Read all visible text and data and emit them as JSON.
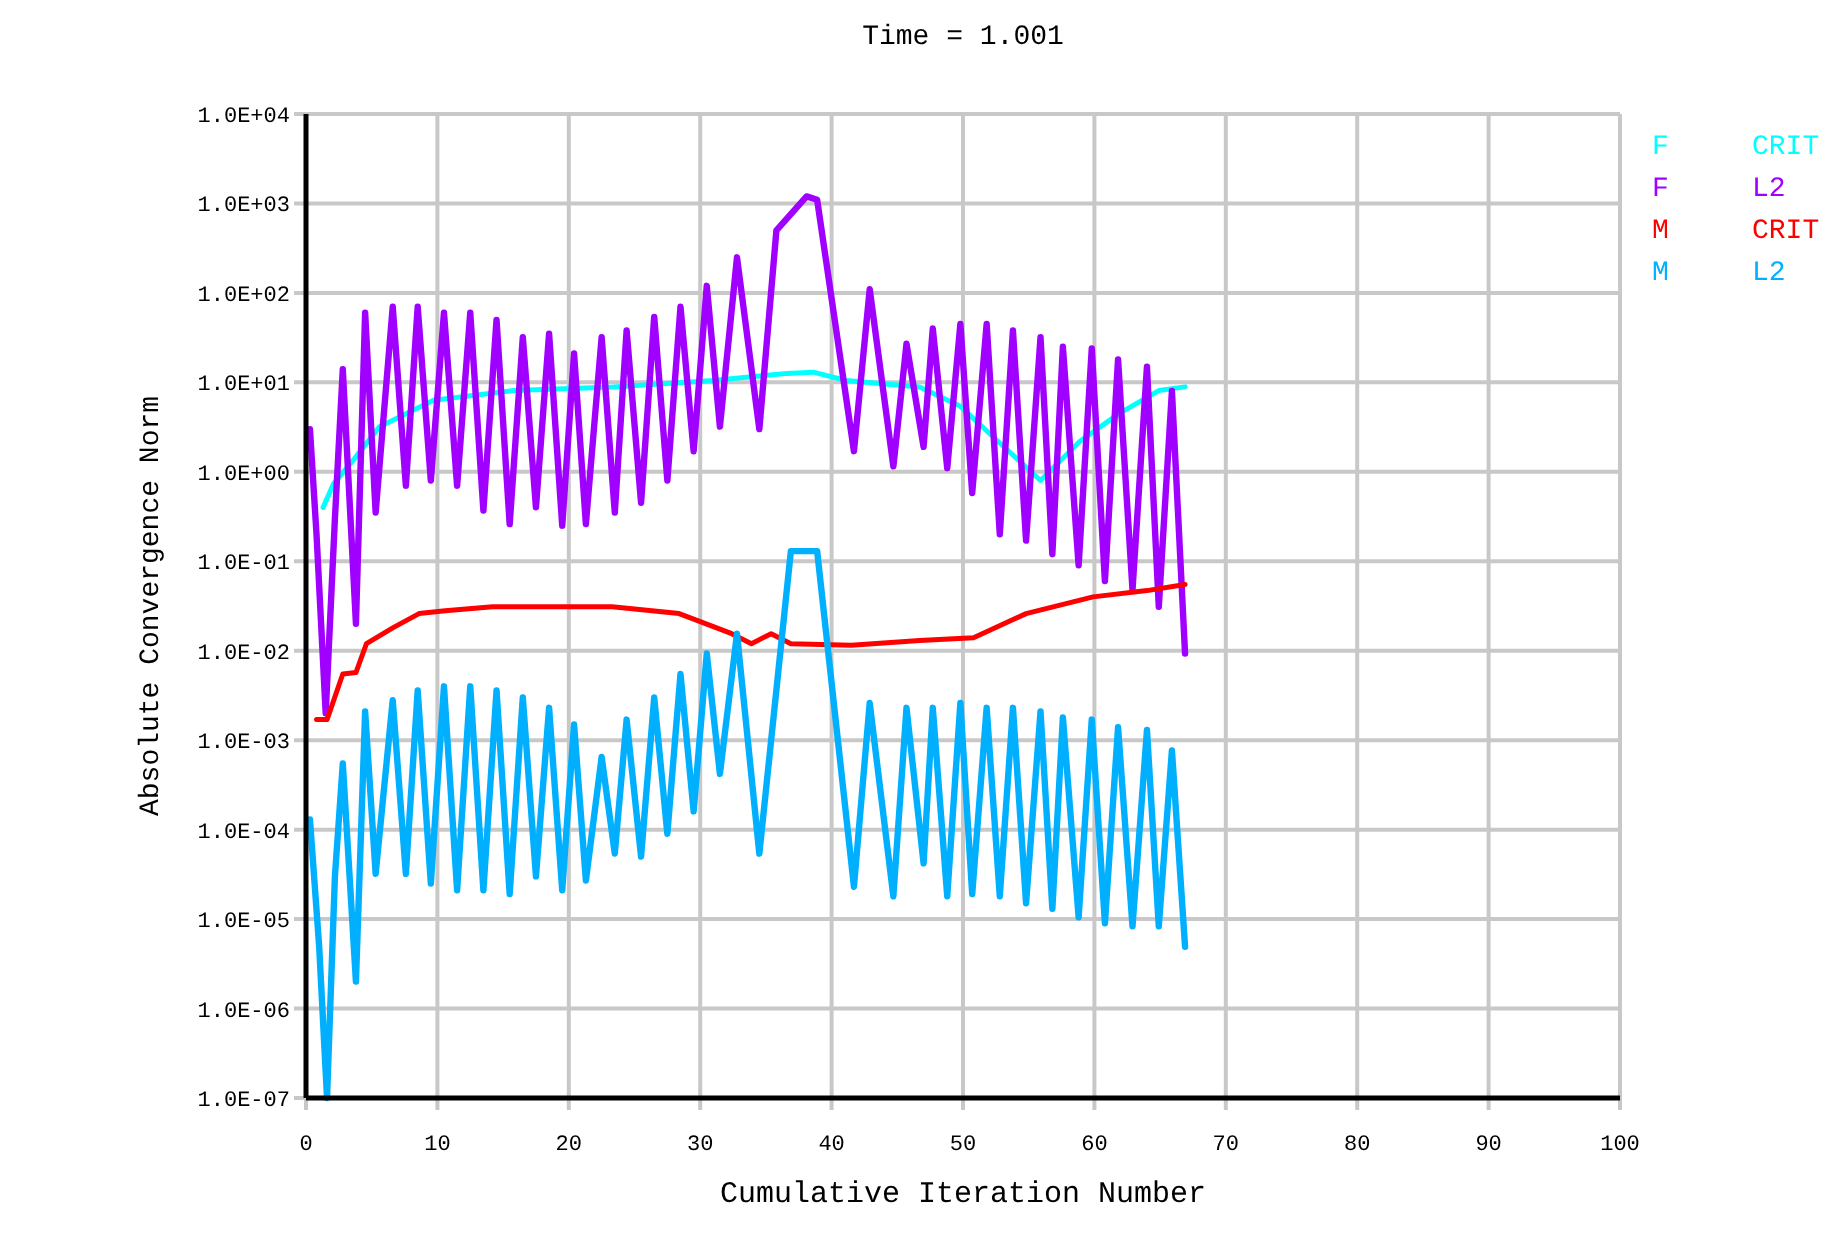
{
  "chart_data": {
    "type": "line",
    "title": "Time = 1.001",
    "xlabel": "Cumulative Iteration Number",
    "ylabel": "Absolute Convergence Norm",
    "log": "y",
    "grid": true,
    "xlim": [
      0,
      100
    ],
    "xticks": [
      0,
      10,
      20,
      30,
      40,
      50,
      60,
      70,
      80,
      90,
      100
    ],
    "ylim": [
      1e-07,
      10000
    ],
    "yticks": [
      {
        "value": 1e-07,
        "label": "1.0E-07"
      },
      {
        "value": 1e-06,
        "label": "1.0E-06"
      },
      {
        "value": 1e-05,
        "label": "1.0E-05"
      },
      {
        "value": 0.0001,
        "label": "1.0E-04"
      },
      {
        "value": 0.001,
        "label": "1.0E-03"
      },
      {
        "value": 0.01,
        "label": "1.0E-02"
      },
      {
        "value": 0.1,
        "label": "1.0E-01"
      },
      {
        "value": 1,
        "label": "1.0E+00"
      },
      {
        "value": 10,
        "label": "1.0E+01"
      },
      {
        "value": 100,
        "label": "1.0E+02"
      },
      {
        "value": 1000,
        "label": "1.0E+03"
      },
      {
        "value": 10000,
        "label": "1.0E+04"
      }
    ],
    "series": [
      {
        "name": "F CRIT",
        "color": "#00ffff",
        "x": [
          1.3,
          2.1,
          3.6,
          5.6,
          9.7,
          15.8,
          23.4,
          31,
          36.6,
          38.6,
          41.1,
          46.7,
          49.8,
          52.8,
          55.9,
          58.9,
          61.9,
          64.9,
          66.9
        ],
        "values": [
          0.4,
          0.74,
          1.35,
          3.2,
          6.3,
          8.1,
          8.9,
          10.5,
          12.6,
          13,
          10.5,
          8.9,
          5.4,
          2.1,
          0.8,
          2.2,
          4.5,
          8.1,
          8.9
        ]
      },
      {
        "name": "F L2",
        "color": "#a000ff",
        "x": [
          0.3,
          0.8,
          1.5,
          2.2,
          2.8,
          3.8,
          4.5,
          5.3,
          6.6,
          7.6,
          8.5,
          9.5,
          10.5,
          11.5,
          12.5,
          13.5,
          14.5,
          15.5,
          16.5,
          17.5,
          18.5,
          19.5,
          20.4,
          21.3,
          22.5,
          23.5,
          24.4,
          25.5,
          26.5,
          27.5,
          28.5,
          29.5,
          30.5,
          31.5,
          32.8,
          34.5,
          35.8,
          38.1,
          38.9,
          41.7,
          42.9,
          44.7,
          45.7,
          47,
          47.7,
          48.8,
          49.8,
          50.7,
          51.8,
          52.8,
          53.8,
          54.8,
          55.9,
          56.8,
          57.6,
          58.8,
          59.8,
          60.8,
          61.8,
          62.9,
          64,
          64.9,
          65.9,
          66.9
        ],
        "values": [
          3,
          0.2,
          0.002,
          0.3,
          14,
          0.02,
          60,
          0.35,
          70,
          0.7,
          70,
          0.8,
          60,
          0.7,
          60,
          0.37,
          50,
          0.26,
          32,
          0.4,
          35,
          0.25,
          21,
          0.26,
          32,
          0.35,
          38,
          0.45,
          54,
          0.8,
          70,
          1.7,
          120,
          3.2,
          250,
          3,
          500,
          1200,
          1100,
          1.7,
          110,
          1.15,
          27,
          1.9,
          40,
          1.1,
          45,
          0.58,
          45,
          0.2,
          38,
          0.17,
          32,
          0.12,
          25,
          0.09,
          24,
          0.06,
          18,
          0.048,
          15,
          0.031,
          8,
          0.0093
        ]
      },
      {
        "name": "M CRIT",
        "color": "#ff0000",
        "x": [
          0.8,
          1.6,
          2.8,
          3.8,
          4.6,
          6.6,
          8.6,
          10.6,
          14.2,
          23.3,
          28.4,
          32.4,
          33.9,
          35.4,
          36.9,
          41.5,
          46.7,
          50.8,
          54.8,
          59.9,
          64,
          66.9
        ],
        "values": [
          0.0017,
          0.0017,
          0.0055,
          0.0057,
          0.012,
          0.018,
          0.026,
          0.028,
          0.031,
          0.031,
          0.026,
          0.0155,
          0.012,
          0.0155,
          0.012,
          0.0115,
          0.013,
          0.014,
          0.026,
          0.04,
          0.047,
          0.055
        ]
      },
      {
        "name": "M L2",
        "color": "#00b0ff",
        "x": [
          0.3,
          1,
          1.6,
          2.2,
          2.8,
          3.8,
          4.5,
          5.3,
          6.6,
          7.6,
          8.5,
          9.5,
          10.5,
          11.5,
          12.5,
          13.5,
          14.5,
          15.5,
          16.5,
          17.5,
          18.5,
          19.5,
          20.4,
          21.3,
          22.5,
          23.5,
          24.4,
          25.5,
          26.5,
          27.5,
          28.5,
          29.5,
          30.5,
          31.5,
          32.8,
          34.5,
          36.9,
          38.9,
          41.7,
          42.9,
          44.7,
          45.7,
          47,
          47.7,
          48.8,
          49.8,
          50.7,
          51.8,
          52.8,
          53.8,
          54.8,
          55.9,
          56.8,
          57.6,
          58.8,
          59.8,
          60.8,
          61.8,
          62.9,
          64,
          64.9,
          65.9,
          66.9
        ],
        "values": [
          0.00013,
          5e-06,
          1e-07,
          3e-05,
          0.00055,
          2e-06,
          0.0021,
          3.2e-05,
          0.0028,
          3.2e-05,
          0.0036,
          2.5e-05,
          0.004,
          2.1e-05,
          0.004,
          2.1e-05,
          0.0036,
          1.9e-05,
          0.003,
          3e-05,
          0.0023,
          2.1e-05,
          0.0015,
          2.7e-05,
          0.00065,
          5.4e-05,
          0.0017,
          5e-05,
          0.003,
          9e-05,
          0.0055,
          0.00016,
          0.0093,
          0.00042,
          0.0155,
          5.4e-05,
          0.13,
          0.13,
          2.3e-05,
          0.0026,
          1.8e-05,
          0.0023,
          4.2e-05,
          0.0023,
          1.8e-05,
          0.0026,
          1.9e-05,
          0.0023,
          1.8e-05,
          0.0023,
          1.5e-05,
          0.0021,
          1.3e-05,
          0.0018,
          1.05e-05,
          0.0017,
          9e-06,
          0.0014,
          8.3e-06,
          0.0013,
          8.3e-06,
          0.00077,
          4.9e-06
        ]
      }
    ]
  }
}
